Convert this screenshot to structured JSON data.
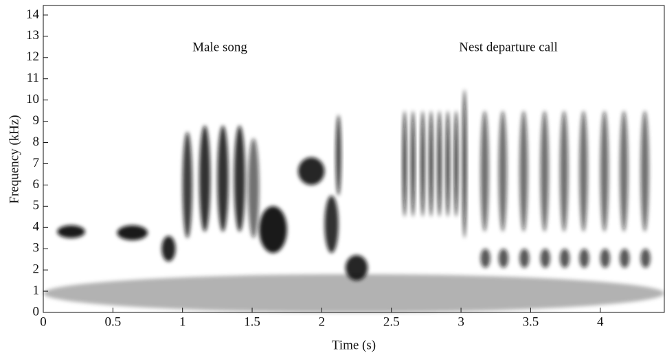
{
  "chart_data": {
    "type": "spectrogram",
    "xlabel": "Time (s)",
    "ylabel": "Frequency (kHz)",
    "annotations": [
      "Male song",
      "Nest departure call"
    ],
    "xlim": [
      0,
      4.46
    ],
    "ylim": [
      0,
      14.45
    ],
    "xticks": [
      0,
      0.5,
      1,
      1.5,
      2,
      2.5,
      3,
      3.5,
      4
    ],
    "yticks": [
      0,
      1,
      2,
      3,
      4,
      5,
      6,
      7,
      8,
      9,
      10,
      11,
      12,
      13,
      14
    ],
    "color": "#111111",
    "syllables": [
      {
        "t": [
          0,
          4.46
        ],
        "f": [
          0,
          1.8
        ],
        "level": 0.3
      },
      {
        "t": [
          0.1,
          0.3
        ],
        "f": [
          3.5,
          4.1
        ],
        "level": 0.95
      },
      {
        "t": [
          0.53,
          0.75
        ],
        "f": [
          3.4,
          4.1
        ],
        "level": 0.95
      },
      {
        "t": [
          0.85,
          0.95
        ],
        "f": [
          2.4,
          3.6
        ],
        "level": 0.9
      },
      {
        "t": [
          1.0,
          1.07
        ],
        "f": [
          3.5,
          8.5
        ],
        "level": 0.8
      },
      {
        "t": [
          1.12,
          1.2
        ],
        "f": [
          3.8,
          8.8
        ],
        "level": 0.85
      },
      {
        "t": [
          1.25,
          1.33
        ],
        "f": [
          3.8,
          8.8
        ],
        "level": 0.85
      },
      {
        "t": [
          1.37,
          1.45
        ],
        "f": [
          3.8,
          8.8
        ],
        "level": 0.85
      },
      {
        "t": [
          1.47,
          1.55
        ],
        "f": [
          3.5,
          8.2
        ],
        "level": 0.6
      },
      {
        "t": [
          1.55,
          1.75
        ],
        "f": [
          2.8,
          5.0
        ],
        "level": 0.95
      },
      {
        "t": [
          1.83,
          2.02
        ],
        "f": [
          6.0,
          7.3
        ],
        "level": 0.9
      },
      {
        "t": [
          2.02,
          2.12
        ],
        "f": [
          2.8,
          5.5
        ],
        "level": 0.85
      },
      {
        "t": [
          2.1,
          2.14
        ],
        "f": [
          5.5,
          9.3
        ],
        "level": 0.8
      },
      {
        "t": [
          2.17,
          2.33
        ],
        "f": [
          1.5,
          2.7
        ],
        "level": 0.9
      },
      {
        "t": [
          2.58,
          2.61
        ],
        "f": [
          4.5,
          9.5
        ],
        "level": 0.85
      },
      {
        "t": [
          2.64,
          2.67
        ],
        "f": [
          4.5,
          9.5
        ],
        "level": 0.85
      },
      {
        "t": [
          2.71,
          2.74
        ],
        "f": [
          4.5,
          9.5
        ],
        "level": 0.85
      },
      {
        "t": [
          2.77,
          2.8
        ],
        "f": [
          4.5,
          9.5
        ],
        "level": 0.85
      },
      {
        "t": [
          2.83,
          2.86
        ],
        "f": [
          4.5,
          9.5
        ],
        "level": 0.85
      },
      {
        "t": [
          2.89,
          2.92
        ],
        "f": [
          4.5,
          9.5
        ],
        "level": 0.85
      },
      {
        "t": [
          2.95,
          2.98
        ],
        "f": [
          4.5,
          9.5
        ],
        "level": 0.85
      },
      {
        "t": [
          3.01,
          3.04
        ],
        "f": [
          3.5,
          10.5
        ],
        "level": 0.85
      },
      {
        "t": [
          3.14,
          3.2
        ],
        "f": [
          3.8,
          9.5
        ],
        "level": 0.6
      },
      {
        "t": [
          3.27,
          3.33
        ],
        "f": [
          3.8,
          9.5
        ],
        "level": 0.6
      },
      {
        "t": [
          3.42,
          3.48
        ],
        "f": [
          3.8,
          9.5
        ],
        "level": 0.6
      },
      {
        "t": [
          3.57,
          3.63
        ],
        "f": [
          3.8,
          9.5
        ],
        "level": 0.6
      },
      {
        "t": [
          3.71,
          3.77
        ],
        "f": [
          3.8,
          9.5
        ],
        "level": 0.6
      },
      {
        "t": [
          3.85,
          3.91
        ],
        "f": [
          3.8,
          9.5
        ],
        "level": 0.6
      },
      {
        "t": [
          4.0,
          4.06
        ],
        "f": [
          3.8,
          9.5
        ],
        "level": 0.6
      },
      {
        "t": [
          4.14,
          4.2
        ],
        "f": [
          3.8,
          9.5
        ],
        "level": 0.6
      },
      {
        "t": [
          4.29,
          4.35
        ],
        "f": [
          3.8,
          9.5
        ],
        "level": 0.6
      },
      {
        "t": [
          3.14,
          3.21
        ],
        "f": [
          2.1,
          3.0
        ],
        "level": 0.7
      },
      {
        "t": [
          3.27,
          3.34
        ],
        "f": [
          2.1,
          3.0
        ],
        "level": 0.7
      },
      {
        "t": [
          3.42,
          3.49
        ],
        "f": [
          2.1,
          3.0
        ],
        "level": 0.7
      },
      {
        "t": [
          3.57,
          3.64
        ],
        "f": [
          2.1,
          3.0
        ],
        "level": 0.7
      },
      {
        "t": [
          3.71,
          3.78
        ],
        "f": [
          2.1,
          3.0
        ],
        "level": 0.7
      },
      {
        "t": [
          3.85,
          3.92
        ],
        "f": [
          2.1,
          3.0
        ],
        "level": 0.7
      },
      {
        "t": [
          4.0,
          4.07
        ],
        "f": [
          2.1,
          3.0
        ],
        "level": 0.7
      },
      {
        "t": [
          4.14,
          4.21
        ],
        "f": [
          2.1,
          3.0
        ],
        "level": 0.7
      },
      {
        "t": [
          4.29,
          4.36
        ],
        "f": [
          2.1,
          3.0
        ],
        "level": 0.7
      }
    ]
  }
}
